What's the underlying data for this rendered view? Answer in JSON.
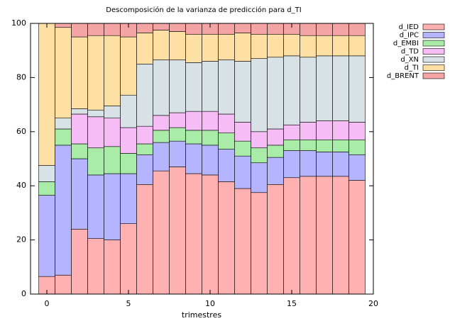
{
  "chart_data": {
    "type": "stacked_bar",
    "title": "Descomposición de la varianza de predicción para d_TI",
    "x_label": "trimestres",
    "x": [
      0,
      1,
      2,
      3,
      4,
      5,
      6,
      7,
      8,
      9,
      10,
      11,
      12,
      13,
      14,
      15,
      16,
      17,
      18,
      19
    ],
    "xlim": [
      -1,
      20
    ],
    "xticks": [
      0,
      5,
      10,
      15,
      20
    ],
    "ylim": [
      0,
      100
    ],
    "yticks": [
      0,
      20,
      40,
      60,
      80,
      100
    ],
    "legend": "top-right-outside",
    "series": [
      {
        "name": "d_IED",
        "color": "#ffb0b0",
        "values": [
          6.5,
          7,
          24,
          20.5,
          20,
          26,
          40.5,
          45.5,
          47,
          44.5,
          44,
          41.5,
          39,
          37.5,
          40.5,
          43,
          43.5,
          43.5,
          43.5,
          42
        ]
      },
      {
        "name": "d_IPC",
        "color": "#b4b4ff",
        "values": [
          30,
          48,
          26,
          23.5,
          24.5,
          18.5,
          11,
          10.5,
          9.5,
          11,
          11,
          12,
          12,
          11,
          10,
          10,
          9.5,
          9,
          9,
          9.5
        ]
      },
      {
        "name": "d_EMBI",
        "color": "#a8eca8",
        "values": [
          5,
          6,
          5.5,
          10,
          10,
          7.5,
          4,
          4.5,
          5,
          5,
          5.5,
          6,
          5.5,
          5.5,
          4.5,
          4,
          4,
          4.5,
          4.5,
          5.5
        ]
      },
      {
        "name": "d_TD",
        "color": "#f6bcf6",
        "values": [
          0,
          0,
          11,
          11.5,
          10.5,
          9.5,
          6.5,
          5.5,
          5.5,
          7,
          7,
          7,
          7,
          6,
          6,
          5.5,
          6.5,
          7,
          7,
          6.5
        ]
      },
      {
        "name": "d_XN",
        "color": "#d8e2e6",
        "values": [
          6,
          4,
          2,
          2.5,
          4.5,
          12,
          23,
          20.5,
          19.5,
          18,
          18.5,
          20,
          22.5,
          27,
          26.5,
          25.5,
          24,
          24,
          24,
          24.5
        ]
      },
      {
        "name": "d_TI",
        "color": "#ffe0a4",
        "values": [
          52.5,
          33.5,
          26.5,
          27.5,
          26,
          21.5,
          11.5,
          11,
          10.5,
          10.5,
          10,
          9.5,
          10.5,
          9,
          8.5,
          8,
          8,
          7.5,
          7.5,
          7.5
        ]
      },
      {
        "name": "d_BRENT",
        "color": "#f4a4a4",
        "values": [
          0,
          1.5,
          5,
          4.5,
          4.5,
          5,
          3.5,
          2.5,
          3,
          4,
          4,
          4,
          3.5,
          4,
          4,
          4,
          4.5,
          4.5,
          4.5,
          4.5
        ]
      }
    ]
  }
}
